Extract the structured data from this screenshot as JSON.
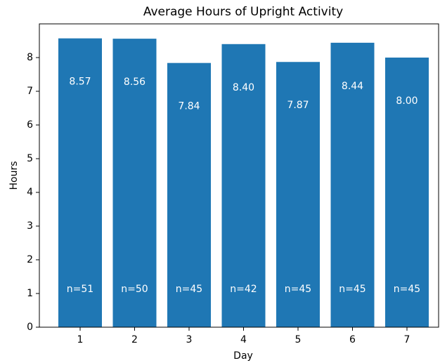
{
  "chart_data": {
    "type": "bar",
    "title": "Average Hours of Upright Activity",
    "x_label": "Day",
    "y_label": "Hours",
    "categories": [
      "1",
      "2",
      "3",
      "4",
      "5",
      "6",
      "7"
    ],
    "values": [
      8.57,
      8.56,
      7.84,
      8.4,
      7.87,
      8.44,
      8.0
    ],
    "value_labels": [
      "8.57",
      "8.56",
      "7.84",
      "8.40",
      "7.87",
      "8.44",
      "8.00"
    ],
    "n_labels": [
      "n=51",
      "n=50",
      "n=45",
      "n=42",
      "n=45",
      "n=45",
      "n=45"
    ],
    "color": "#1f77b4",
    "ylim": [
      0,
      9.0
    ],
    "yticks": [
      0,
      1,
      2,
      3,
      4,
      5,
      6,
      7,
      8
    ],
    "grid": false
  }
}
